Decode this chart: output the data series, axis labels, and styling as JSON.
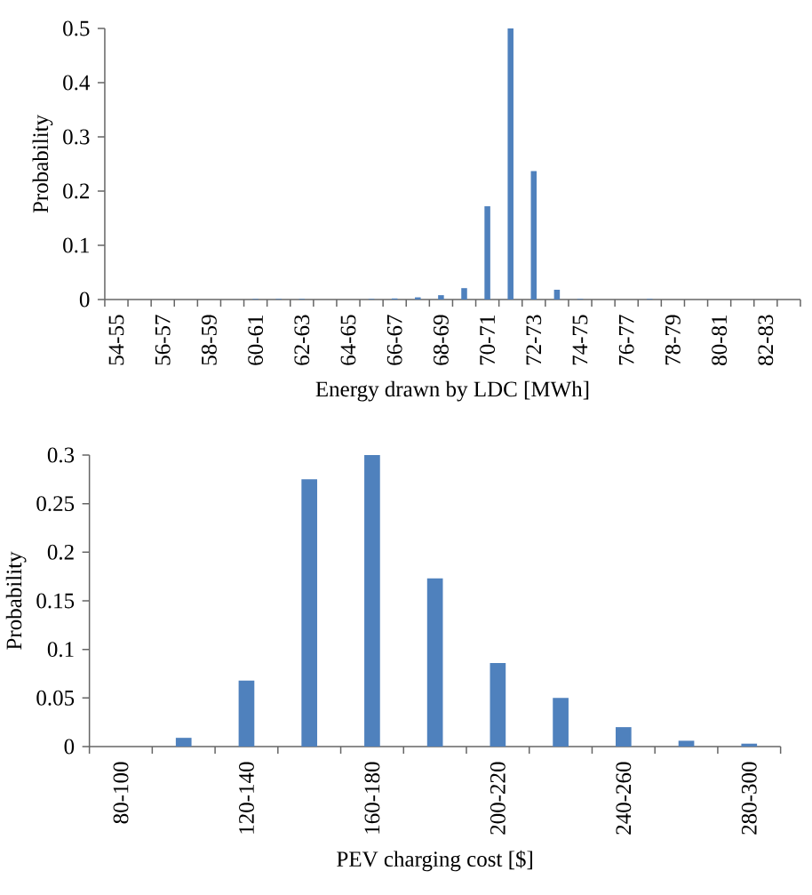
{
  "chart_data": [
    {
      "type": "bar",
      "xlabel": "Energy drawn by LDC [MWh]",
      "ylabel": "Probability",
      "color": "#4f81bd",
      "categories": [
        "54-55",
        null,
        "56-57",
        null,
        "58-59",
        null,
        "60-61",
        null,
        "62-63",
        null,
        "64-65",
        null,
        "66-67",
        null,
        "68-69",
        null,
        "70-71",
        null,
        "72-73",
        null,
        "74-75",
        null,
        "76-77",
        null,
        "78-79",
        null,
        "80-81",
        null,
        "82-83",
        null
      ],
      "values": [
        0,
        0,
        0,
        0,
        0,
        0,
        0.001,
        0.001,
        0.001,
        0,
        0,
        0.001,
        0.002,
        0.004,
        0.008,
        0.021,
        0.172,
        0.5,
        0.237,
        0.018,
        0.001,
        0,
        0,
        0.001,
        0,
        0,
        0,
        0,
        0,
        0
      ],
      "ylim": [
        0,
        0.5
      ],
      "yticks": [
        0,
        0.1,
        0.2,
        0.3,
        0.4,
        0.5
      ]
    },
    {
      "type": "bar",
      "xlabel": "PEV charging cost [$]",
      "ylabel": "Probability",
      "color": "#4f81bd",
      "categories": [
        "80-100",
        null,
        "120-140",
        null,
        "160-180",
        null,
        "200-220",
        null,
        "240-260",
        null,
        "280-300"
      ],
      "values": [
        0,
        0.009,
        0.068,
        0.275,
        0.3,
        0.173,
        0.086,
        0.05,
        0.02,
        0.006,
        0.003
      ],
      "ylim": [
        0,
        0.3
      ],
      "yticks": [
        0,
        0.05,
        0.1,
        0.15,
        0.2,
        0.25,
        0.3
      ]
    }
  ]
}
